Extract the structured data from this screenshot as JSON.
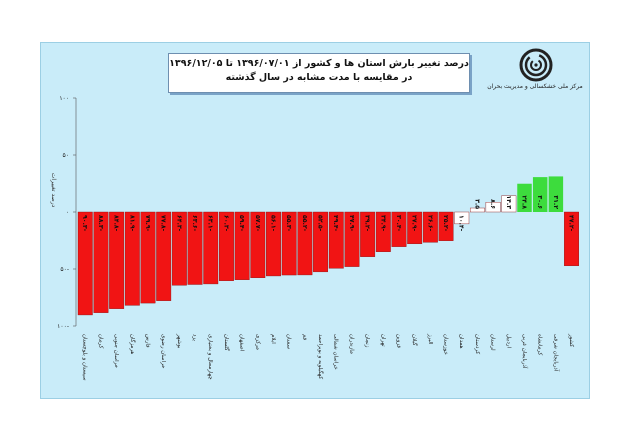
{
  "header": {
    "title_line1": "درصد تغییر بارش استان ها و کشور از ۱۳۹۶/۰۷/۰۱ تا ۱۳۹۶/۱۲/۰۵",
    "title_line2": "در مقایسه با مدت مشابه در سال گذشته",
    "org_name": "مرکز ملی خشکسالی و مدیریت بحران",
    "logo_icon": "spiral-logo-icon"
  },
  "colors": {
    "frame": "#c9ecf9",
    "negative_bar": "#f11414",
    "near_zero_bar": "#ffffff",
    "positive_bar": "#3ddc3d",
    "country_bar": "#f11414"
  },
  "chart_data": {
    "type": "bar",
    "title": "درصد تغییر بارش استان ها و کشور از ۱۳۹۶/۰۷/۰۱ تا ۱۳۹۶/۱۲/۰۵ در مقایسه با مدت مشابه در سال گذشته",
    "ylabel": "درصد تغییرات",
    "xlabel": "",
    "ylim": [
      -100,
      100
    ],
    "yticks": [
      100,
      50,
      0,
      -50,
      -100
    ],
    "ytick_labels": [
      "۱۰۰",
      "۵۰",
      "۰",
      "۵۰-",
      "۱۰۰-"
    ],
    "grid": false,
    "categories": [
      "سیستان و بلوچستان",
      "کرمان",
      "خراسان جنوبی",
      "هرمزگان",
      "فارس",
      "خراسان رضوی",
      "بوشهر",
      "یزد",
      "چهارمحال و بختیاری",
      "گلستان",
      "اصفهان",
      "مرکزی",
      "ایلام",
      "سمنان",
      "قم",
      "کهگیلویه و بویراحمد",
      "خراسان شمالی",
      "مازندران",
      "زنجان",
      "تهران",
      "قزوین",
      "گیلان",
      "البرز",
      "خوزستان",
      "همدان",
      "کردستان",
      "لرستان",
      "اردبیل",
      "آذربایجان غربی",
      "کرمانشاه",
      "آذربایجان شرقی",
      "کشور"
    ],
    "values": [
      -90.3,
      -88.3,
      -84.8,
      -81.9,
      -79.9,
      -77.8,
      -64.3,
      -63.6,
      -63.1,
      -60.3,
      -59.4,
      -57.7,
      -56.1,
      -55.3,
      -55.2,
      -52.5,
      -49.4,
      -47.9,
      -39.2,
      -34.9,
      -30.4,
      -27.9,
      -26.6,
      -25.2,
      -10.4,
      3.5,
      8.6,
      14.3,
      24.8,
      30.6,
      31.2,
      -47.2
    ],
    "value_labels": [
      "۹۰.۳-",
      "۸۸.۳-",
      "۸۴.۸-",
      "۸۱.۹-",
      "۷۹.۹-",
      "۷۷.۸-",
      "۶۴.۳-",
      "۶۳.۶-",
      "۶۳.۱-",
      "۶۰.۳-",
      "۵۹.۴-",
      "۵۷.۷-",
      "۵۶.۱-",
      "۵۵.۳-",
      "۵۵.۲-",
      "۵۲.۵-",
      "۴۹.۴-",
      "۴۷.۹-",
      "۳۹.۲-",
      "۳۴.۹-",
      "۳۰.۴-",
      "۲۷.۹-",
      "۲۶.۶-",
      "۲۵.۲-",
      "۱۰.۴-",
      "۳.۵",
      "۸.۶",
      "۱۴.۳",
      "۲۴.۸",
      "۳۰.۶",
      "۳۱.۲",
      "۴۷.۲-"
    ]
  }
}
